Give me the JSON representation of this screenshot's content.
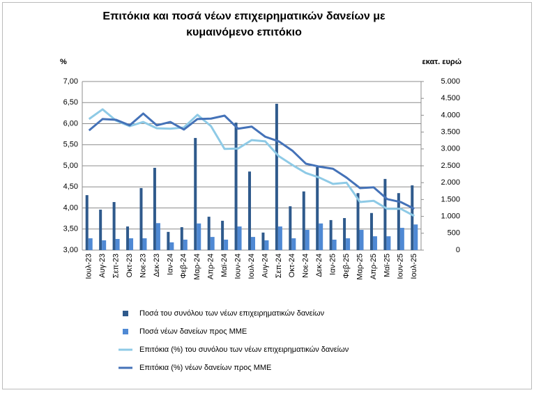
{
  "chart_data": {
    "type": "combo",
    "title": "Επιτόκια και ποσά νέων επιχειρηματικών δανείων με",
    "title_line2": "κυμαινόμενο επιτόκιο",
    "y_label": "%",
    "y2_label": "εκατ. ευρώ",
    "categories": [
      "Ιουλ-23",
      "Αυγ-23",
      "Σεπ-23",
      "Οκτ-23",
      "Νοε-23",
      "Δεκ-23",
      "Ιαν-24",
      "Φεβ-24",
      "Μαρ-24",
      "Απρ-24",
      "Μαϊ-24",
      "Ιουν-24",
      "Ιουλ-24",
      "Αυγ-24",
      "Σεπ-24",
      "Οκτ-24",
      "Νοε-24",
      "Δεκ-24",
      "Ιαν-25",
      "Φεβ-25",
      "Μαρ-25",
      "Απρ-25",
      "Μαϊ-25",
      "Ιουν-25",
      "Ιουλ-25"
    ],
    "series": [
      {
        "name": "Ποσά του συνόλου των νέων επιχειρηματικών δανείων",
        "type": "bar",
        "axis": "y2",
        "color": "#2f5a8c",
        "values": [
          1630,
          1200,
          1425,
          700,
          1840,
          2440,
          540,
          680,
          3325,
          990,
          870,
          3780,
          2330,
          520,
          4340,
          1300,
          1740,
          2460,
          890,
          950,
          1690,
          1100,
          2110,
          1690,
          1920
        ]
      },
      {
        "name": "Ποσά νέων δανείων προς ΜΜΕ",
        "type": "bar",
        "axis": "y2",
        "color": "#4f89d4",
        "values": [
          350,
          290,
          330,
          350,
          350,
          800,
          230,
          310,
          790,
          390,
          310,
          700,
          390,
          290,
          700,
          350,
          600,
          790,
          310,
          350,
          600,
          410,
          410,
          660,
          760
        ]
      },
      {
        "name": "Επιτόκια (%) του συνόλου των νέων επιχειρηματικών δανείων",
        "type": "line",
        "color": "#8ecae6",
        "values": [
          6.11,
          6.34,
          6.07,
          5.94,
          6.04,
          5.89,
          5.88,
          5.91,
          6.21,
          5.94,
          5.4,
          5.41,
          5.61,
          5.58,
          5.23,
          5.02,
          4.83,
          4.72,
          4.57,
          4.6,
          4.14,
          4.17,
          3.98,
          3.98,
          3.81
        ]
      },
      {
        "name": "Επιτόκια (%) νέων δανείων προς ΜΜΕ",
        "type": "line",
        "color": "#4472b8",
        "values": [
          5.84,
          6.11,
          6.09,
          5.96,
          6.24,
          5.96,
          6.04,
          5.86,
          6.11,
          6.12,
          6.19,
          5.88,
          5.93,
          5.69,
          5.58,
          5.36,
          5.05,
          4.98,
          4.93,
          4.72,
          4.47,
          4.49,
          4.21,
          4.14,
          3.98
        ]
      }
    ],
    "ylim": [
      3,
      7
    ],
    "yticks": [
      {
        "value": 3,
        "label": "3,00"
      },
      {
        "value": 3.5,
        "label": "3,50"
      },
      {
        "value": 4,
        "label": "4,00"
      },
      {
        "value": 4.5,
        "label": "4,50"
      },
      {
        "value": 5,
        "label": "5,00"
      },
      {
        "value": 5.5,
        "label": "5,50"
      },
      {
        "value": 6,
        "label": "6,00"
      },
      {
        "value": 6.5,
        "label": "6,50"
      },
      {
        "value": 7,
        "label": "7,00"
      }
    ],
    "y2lim": [
      0,
      5000
    ],
    "y2ticks": [
      0,
      500,
      {
        "value": 1000,
        "label": "1.000"
      },
      {
        "value": 1500,
        "label": "1.500"
      },
      {
        "value": 2000,
        "label": "2.000"
      },
      {
        "value": 2500,
        "label": "2.500"
      },
      {
        "value": 3000,
        "label": "3.000"
      },
      {
        "value": 3500,
        "label": "3.500"
      },
      {
        "value": 4000,
        "label": "4.000"
      },
      {
        "value": 4500,
        "label": "4.500"
      },
      {
        "value": 5000,
        "label": "5.000"
      }
    ],
    "grid": true
  }
}
